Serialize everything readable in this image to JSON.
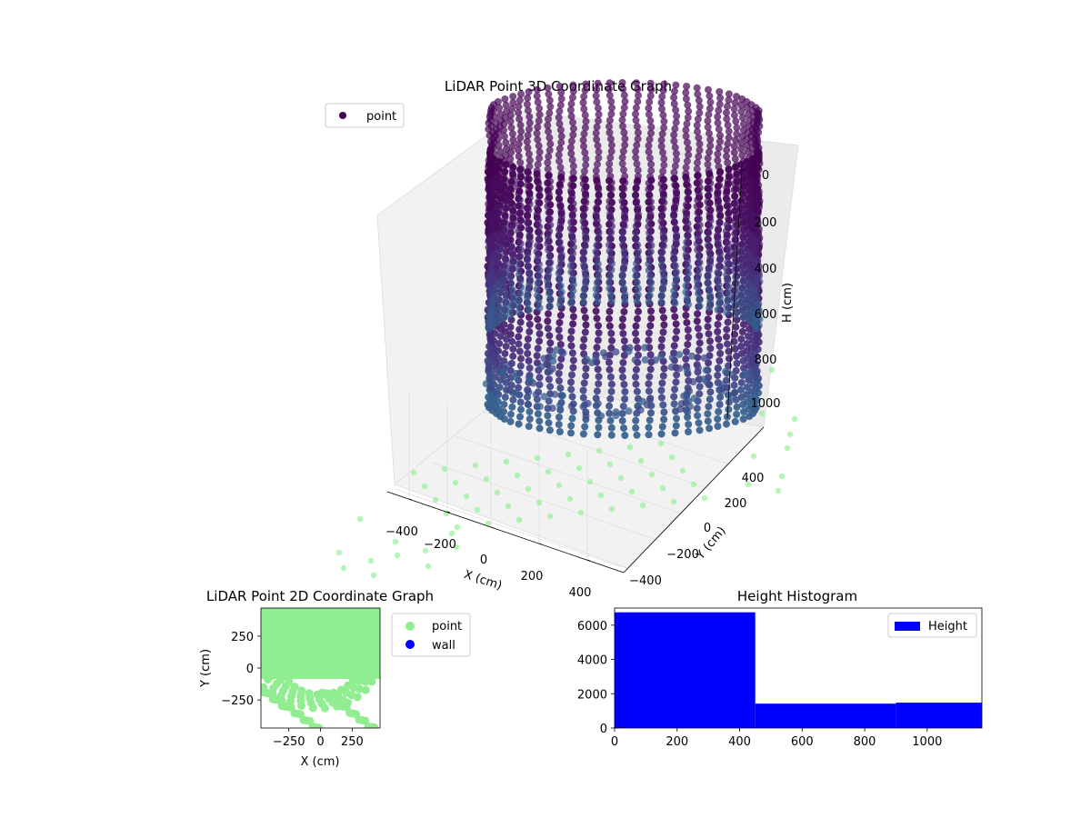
{
  "chart_data": [
    {
      "type": "scatter",
      "projection": "3d",
      "title": "LiDAR Point 3D Coordinate Graph",
      "xlabel": "X (cm)",
      "ylabel": "Y (cm)",
      "zlabel": "H (cm)",
      "x_ticks": [
        "−400",
        "−200",
        "0",
        "200",
        "400"
      ],
      "y_ticks": [
        "−400",
        "−200",
        "0",
        "200",
        "400"
      ],
      "z_ticks": [
        "0",
        "200",
        "400",
        "600",
        "800",
        "1000"
      ],
      "z_inverted": true,
      "legend": [
        {
          "label": "point",
          "color": "#440154"
        }
      ],
      "legend_position": "top-left",
      "colormap": "viridis",
      "description_values": {
        "point_cloud": "cylindrical wall of points, radius about 450 cm, heights from 0 to about 1100 cm",
        "floor_points_color": "#90ee90"
      }
    },
    {
      "type": "scatter",
      "title": "LiDAR Point 2D Coordinate Graph",
      "xlabel": "X (cm)",
      "ylabel": "Y (cm)",
      "x_ticks": [
        "−250",
        "0",
        "250"
      ],
      "y_ticks": [
        "250",
        "0",
        "−250"
      ],
      "xlim": [
        -470,
        470
      ],
      "ylim": [
        -470,
        470
      ],
      "series": [
        {
          "name": "point",
          "color": "#90ee90"
        },
        {
          "name": "wall",
          "color": "#0000ff"
        }
      ],
      "legend_position": "outside-right"
    },
    {
      "type": "bar",
      "subtype": "histogram",
      "title": "Height Histogram",
      "xlim": [
        0,
        1175
      ],
      "ylim": [
        0,
        7000
      ],
      "x_ticks": [
        "0",
        "200",
        "400",
        "600",
        "800",
        "1000"
      ],
      "y_ticks": [
        "0",
        "2000",
        "4000",
        "6000"
      ],
      "bins": [
        {
          "start": 0,
          "end": 450,
          "count": 6750
        },
        {
          "start": 450,
          "end": 900,
          "count": 1420
        },
        {
          "start": 900,
          "end": 1175,
          "count": 1480
        }
      ],
      "series": [
        {
          "name": "Height",
          "color": "#0000ff"
        }
      ],
      "legend_position": "top-right"
    }
  ]
}
